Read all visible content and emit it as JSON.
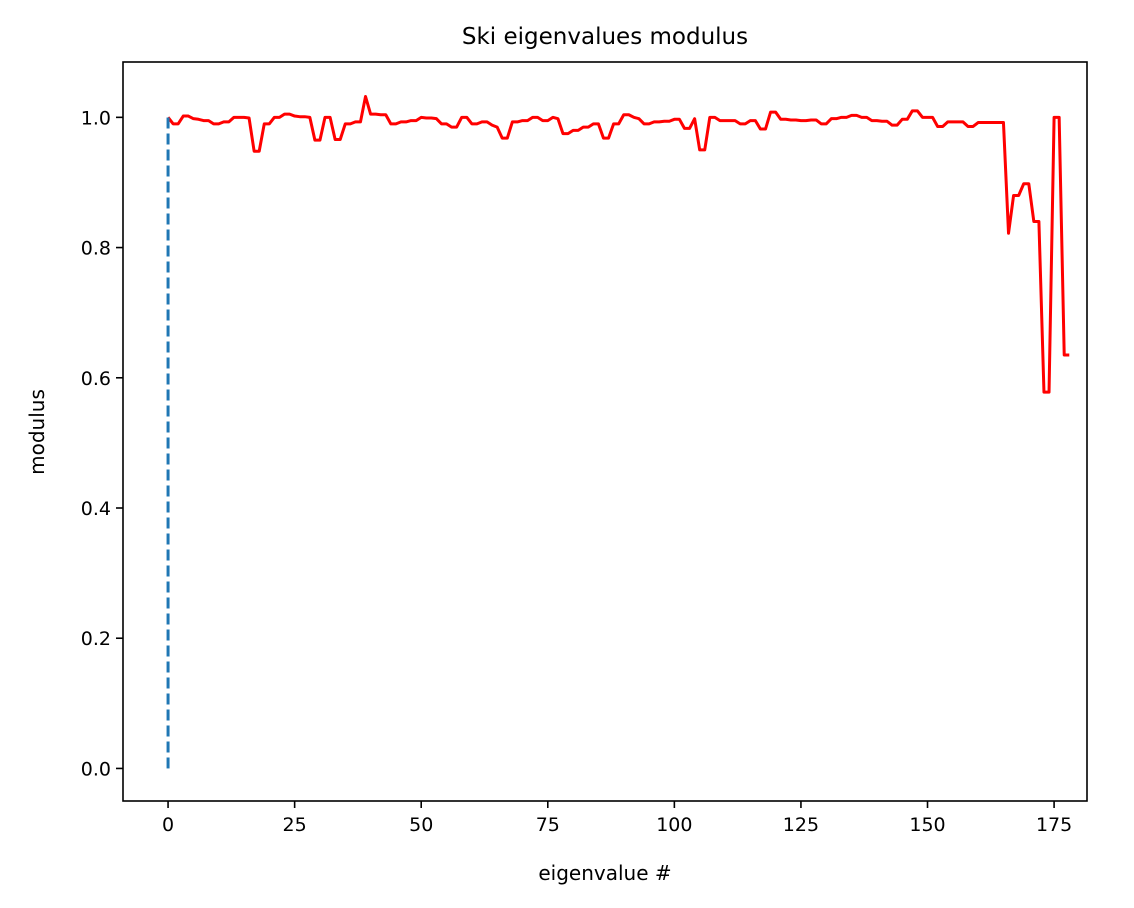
{
  "chart_data": {
    "type": "line",
    "title": "Ski eigenvalues modulus",
    "xlabel": "eigenvalue #",
    "ylabel": "modulus",
    "xlim": [
      -8.9,
      181.5
    ],
    "ylim": [
      -0.05,
      1.085
    ],
    "xticks": [
      0,
      25,
      50,
      75,
      100,
      125,
      150,
      175
    ],
    "yticks": [
      {
        "value": 0,
        "label": "0.0"
      },
      0.2,
      0.4,
      0.6,
      0.8,
      {
        "value": 1,
        "label": "1.0"
      }
    ],
    "grid": false,
    "series": [
      {
        "color": "#ff0000",
        "dash": false,
        "x": [
          0,
          1,
          2,
          3,
          4,
          5,
          6,
          7,
          8,
          9,
          10,
          11,
          12,
          13,
          14,
          15,
          16,
          17,
          18,
          19,
          20,
          21,
          22,
          23,
          24,
          25,
          26,
          27,
          28,
          29,
          30,
          31,
          32,
          33,
          34,
          35,
          36,
          37,
          38,
          39,
          40,
          41,
          42,
          43,
          44,
          45,
          46,
          47,
          48,
          49,
          50,
          51,
          52,
          53,
          54,
          55,
          56,
          57,
          58,
          59,
          60,
          61,
          62,
          63,
          64,
          65,
          66,
          67,
          68,
          69,
          70,
          71,
          72,
          73,
          74,
          75,
          76,
          77,
          78,
          79,
          80,
          81,
          82,
          83,
          84,
          85,
          86,
          87,
          88,
          89,
          90,
          91,
          92,
          93,
          94,
          95,
          96,
          97,
          98,
          99,
          100,
          101,
          102,
          103,
          104,
          105,
          106,
          107,
          108,
          109,
          110,
          111,
          112,
          113,
          114,
          115,
          116,
          117,
          118,
          119,
          120,
          121,
          122,
          123,
          124,
          125,
          126,
          127,
          128,
          129,
          130,
          131,
          132,
          133,
          134,
          135,
          136,
          137,
          138,
          139,
          140,
          141,
          142,
          143,
          144,
          145,
          146,
          147,
          148,
          149,
          150,
          151,
          152,
          153,
          154,
          155,
          156,
          157,
          158,
          159,
          160,
          161,
          162,
          163,
          164,
          165,
          166,
          167,
          168,
          169,
          170,
          171,
          172,
          173,
          174,
          175,
          176,
          177,
          178
        ],
        "values": [
          1.0,
          0.99,
          0.99,
          1.002,
          1.002,
          0.998,
          0.997,
          0.995,
          0.995,
          0.99,
          0.99,
          0.993,
          0.993,
          1.0,
          1.0,
          1.0,
          0.999,
          0.948,
          0.948,
          0.99,
          0.99,
          1.0,
          1.0,
          1.005,
          1.005,
          1.002,
          1.001,
          1.001,
          1.0,
          0.965,
          0.965,
          1.0,
          1.0,
          0.966,
          0.966,
          0.99,
          0.99,
          0.993,
          0.993,
          1.032,
          1.005,
          1.005,
          1.004,
          1.004,
          0.99,
          0.99,
          0.993,
          0.993,
          0.995,
          0.995,
          1.0,
          0.999,
          0.999,
          0.998,
          0.99,
          0.99,
          0.985,
          0.985,
          1.0,
          1.0,
          0.99,
          0.99,
          0.993,
          0.993,
          0.988,
          0.985,
          0.968,
          0.968,
          0.993,
          0.993,
          0.995,
          0.995,
          1.0,
          1.0,
          0.995,
          0.995,
          1.0,
          0.998,
          0.975,
          0.975,
          0.98,
          0.98,
          0.985,
          0.985,
          0.99,
          0.99,
          0.968,
          0.968,
          0.99,
          0.99,
          1.004,
          1.004,
          1.0,
          0.998,
          0.99,
          0.99,
          0.993,
          0.993,
          0.994,
          0.994,
          0.997,
          0.997,
          0.983,
          0.983,
          0.998,
          0.95,
          0.95,
          1.0,
          1.0,
          0.995,
          0.995,
          0.995,
          0.995,
          0.99,
          0.99,
          0.995,
          0.995,
          0.982,
          0.982,
          1.008,
          1.008,
          0.997,
          0.997,
          0.996,
          0.996,
          0.995,
          0.995,
          0.996,
          0.996,
          0.99,
          0.99,
          0.998,
          0.998,
          1.0,
          1.0,
          1.003,
          1.003,
          1.0,
          1.0,
          0.995,
          0.995,
          0.994,
          0.994,
          0.988,
          0.988,
          0.997,
          0.997,
          1.01,
          1.01,
          1.0,
          1.0,
          1.0,
          0.986,
          0.986,
          0.993,
          0.993,
          0.993,
          0.993,
          0.986,
          0.986,
          0.992,
          0.992,
          0.992,
          0.992,
          0.992,
          0.992,
          0.822,
          0.88,
          0.88,
          0.898,
          0.898,
          0.84,
          0.84,
          0.578,
          0.578,
          1.0,
          1.0,
          0.635,
          0.635
        ]
      },
      {
        "color": "#1f77b4",
        "dash": true,
        "x": [
          0,
          0
        ],
        "values": [
          0,
          1
        ]
      }
    ]
  }
}
